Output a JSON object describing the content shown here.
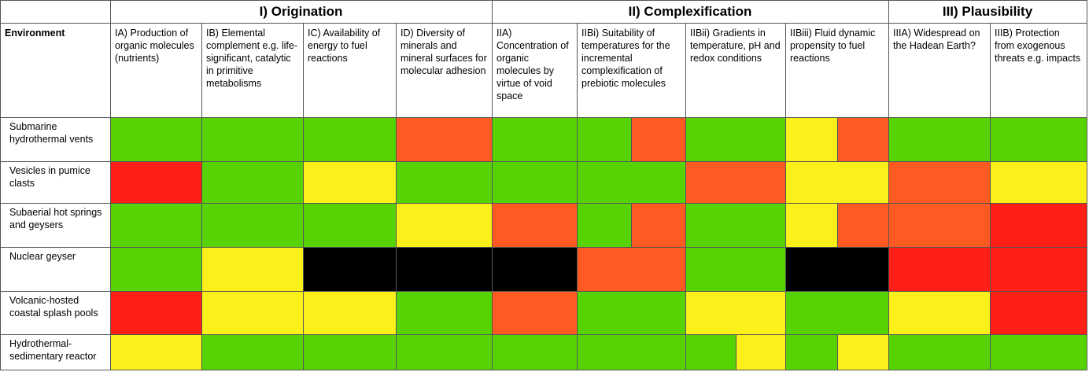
{
  "colors": {
    "green": "#57D304",
    "orange": "#FE5A21",
    "yellow": "#FCF01A",
    "red": "#FF1F16",
    "black": "#000000"
  },
  "groups": [
    {
      "label": "I) Origination"
    },
    {
      "label": "II) Complexification"
    },
    {
      "label": "III) Plausibility"
    }
  ],
  "subheaders": [
    "Environment",
    "IA) Production of organic molecules (nutrients)",
    "IB) Elemental complement e.g. life-significant, catalytic in primitive metabolisms",
    "IC) Availability of energy to fuel reactions",
    "ID) Diversity of minerals and mineral surfaces for molecular adhesion",
    "IIA) Concentration of organic molecules by virtue of void space",
    "IIBi) Suitability of temperatures for the incremental complexification of prebiotic molecules",
    "IIBii) Gradients in temperature, pH and redox conditions",
    "IIBiii) Fluid dynamic propensity to fuel reactions",
    "IIIA) Widespread on the Hadean Earth?",
    "IIIB) Protection from exogenous threats e.g. impacts"
  ],
  "rows": [
    {
      "label": "Submarine hydrothermal vents",
      "cells": [
        [
          "green"
        ],
        [
          "green"
        ],
        [
          "green"
        ],
        [
          "orange"
        ],
        [
          "green"
        ],
        [
          "green",
          "orange"
        ],
        [
          "green"
        ],
        [
          "yellow",
          "orange"
        ],
        [
          "green"
        ],
        [
          "green"
        ]
      ]
    },
    {
      "label": "Vesicles in pumice clasts",
      "cells": [
        [
          "red"
        ],
        [
          "green"
        ],
        [
          "yellow"
        ],
        [
          "green"
        ],
        [
          "green"
        ],
        [
          "green"
        ],
        [
          "orange"
        ],
        [
          "yellow"
        ],
        [
          "orange"
        ],
        [
          "yellow"
        ]
      ]
    },
    {
      "label": "Subaerial hot springs and geysers",
      "cells": [
        [
          "green"
        ],
        [
          "green"
        ],
        [
          "green"
        ],
        [
          "yellow"
        ],
        [
          "orange"
        ],
        [
          "green",
          "orange"
        ],
        [
          "green"
        ],
        [
          "yellow",
          "orange"
        ],
        [
          "orange"
        ],
        [
          "red"
        ]
      ]
    },
    {
      "label": "Nuclear geyser",
      "cells": [
        [
          "green"
        ],
        [
          "yellow"
        ],
        [
          "black"
        ],
        [
          "black"
        ],
        [
          "black"
        ],
        [
          "orange"
        ],
        [
          "green"
        ],
        [
          "black"
        ],
        [
          "red"
        ],
        [
          "red"
        ]
      ]
    },
    {
      "label": "Volcanic-hosted coastal splash pools",
      "cells": [
        [
          "red"
        ],
        [
          "yellow"
        ],
        [
          "yellow"
        ],
        [
          "green"
        ],
        [
          "orange"
        ],
        [
          "green"
        ],
        [
          "yellow"
        ],
        [
          "green"
        ],
        [
          "yellow"
        ],
        [
          "red"
        ]
      ]
    },
    {
      "label": "Hydrothermal-sedimentary reactor",
      "cells": [
        [
          "yellow"
        ],
        [
          "green"
        ],
        [
          "green"
        ],
        [
          "green"
        ],
        [
          "green"
        ],
        [
          "green"
        ],
        [
          "green",
          "yellow"
        ],
        [
          "green",
          "yellow"
        ],
        [
          "green"
        ],
        [
          "green"
        ]
      ]
    }
  ]
}
